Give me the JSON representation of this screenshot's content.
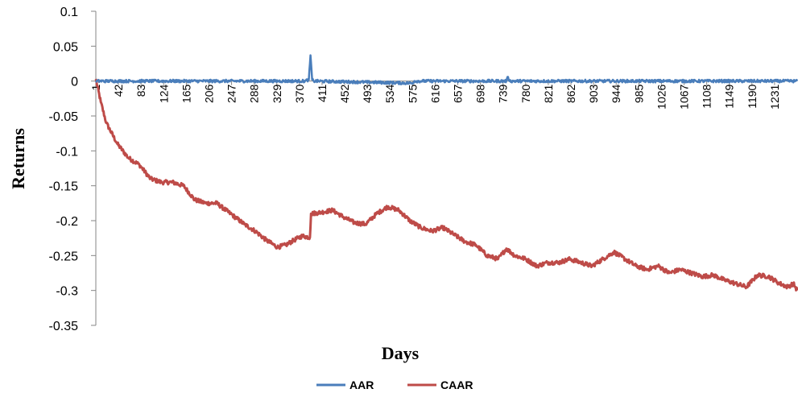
{
  "colors": {
    "aar": "#4a7ebb",
    "caar": "#be4b48",
    "axis": "#868686",
    "tick_text": "#000000"
  },
  "chart_data": {
    "type": "line",
    "title": "",
    "xlabel": "Days",
    "ylabel": "Returns",
    "ylim": [
      -0.35,
      0.1
    ],
    "xlim": [
      1,
      1272
    ],
    "y_ticks": [
      "0.1",
      "0.05",
      "0",
      "-0.05",
      "-0.1",
      "-0.15",
      "-0.2",
      "-0.25",
      "-0.3",
      "-0.35"
    ],
    "y_tick_values": [
      0.1,
      0.05,
      0,
      -0.05,
      -0.1,
      -0.15,
      -0.2,
      -0.25,
      -0.3,
      -0.35
    ],
    "x_ticks": [
      "1",
      "42",
      "83",
      "124",
      "165",
      "206",
      "247",
      "288",
      "329",
      "370",
      "411",
      "452",
      "493",
      "534",
      "575",
      "616",
      "657",
      "698",
      "739",
      "780",
      "821",
      "862",
      "903",
      "944",
      "985",
      "1026",
      "1067",
      "1108",
      "1149",
      "1190",
      "1231"
    ],
    "x_tick_values": [
      1,
      42,
      83,
      124,
      165,
      206,
      247,
      288,
      329,
      370,
      411,
      452,
      493,
      534,
      575,
      616,
      657,
      698,
      739,
      780,
      821,
      862,
      903,
      944,
      985,
      1026,
      1067,
      1108,
      1149,
      1190,
      1231
    ],
    "grid": false,
    "legend_position": "bottom",
    "series": [
      {
        "name": "AAR",
        "noise": 0.002,
        "points": [
          [
            1,
            0
          ],
          [
            380,
            0
          ],
          [
            387,
            0.002
          ],
          [
            390,
            0.037
          ],
          [
            393,
            0.002
          ],
          [
            396,
            0
          ],
          [
            575,
            -0.003
          ],
          [
            578,
            0
          ],
          [
            745,
            0
          ],
          [
            748,
            0.006
          ],
          [
            751,
            0
          ],
          [
            1272,
            0
          ]
        ]
      },
      {
        "name": "CAAR",
        "noise": 0.003,
        "points": [
          [
            1,
            0.003
          ],
          [
            10,
            -0.03
          ],
          [
            20,
            -0.06
          ],
          [
            40,
            -0.09
          ],
          [
            60,
            -0.11
          ],
          [
            80,
            -0.12
          ],
          [
            100,
            -0.14
          ],
          [
            120,
            -0.145
          ],
          [
            140,
            -0.145
          ],
          [
            160,
            -0.15
          ],
          [
            180,
            -0.17
          ],
          [
            200,
            -0.175
          ],
          [
            220,
            -0.175
          ],
          [
            245,
            -0.19
          ],
          [
            270,
            -0.205
          ],
          [
            290,
            -0.215
          ],
          [
            310,
            -0.228
          ],
          [
            330,
            -0.238
          ],
          [
            345,
            -0.235
          ],
          [
            360,
            -0.228
          ],
          [
            375,
            -0.222
          ],
          [
            389,
            -0.224
          ],
          [
            391,
            -0.19
          ],
          [
            410,
            -0.188
          ],
          [
            430,
            -0.185
          ],
          [
            450,
            -0.195
          ],
          [
            470,
            -0.203
          ],
          [
            490,
            -0.205
          ],
          [
            510,
            -0.19
          ],
          [
            530,
            -0.18
          ],
          [
            550,
            -0.185
          ],
          [
            570,
            -0.2
          ],
          [
            590,
            -0.21
          ],
          [
            610,
            -0.215
          ],
          [
            630,
            -0.21
          ],
          [
            650,
            -0.22
          ],
          [
            670,
            -0.23
          ],
          [
            690,
            -0.235
          ],
          [
            710,
            -0.25
          ],
          [
            730,
            -0.255
          ],
          [
            745,
            -0.24
          ],
          [
            760,
            -0.25
          ],
          [
            780,
            -0.255
          ],
          [
            800,
            -0.265
          ],
          [
            820,
            -0.26
          ],
          [
            840,
            -0.26
          ],
          [
            860,
            -0.255
          ],
          [
            880,
            -0.26
          ],
          [
            900,
            -0.265
          ],
          [
            920,
            -0.255
          ],
          [
            940,
            -0.245
          ],
          [
            960,
            -0.255
          ],
          [
            980,
            -0.265
          ],
          [
            1000,
            -0.27
          ],
          [
            1020,
            -0.265
          ],
          [
            1040,
            -0.275
          ],
          [
            1060,
            -0.27
          ],
          [
            1080,
            -0.275
          ],
          [
            1100,
            -0.28
          ],
          [
            1120,
            -0.278
          ],
          [
            1140,
            -0.285
          ],
          [
            1160,
            -0.29
          ],
          [
            1180,
            -0.295
          ],
          [
            1200,
            -0.278
          ],
          [
            1220,
            -0.28
          ],
          [
            1240,
            -0.29
          ],
          [
            1255,
            -0.295
          ],
          [
            1265,
            -0.29
          ],
          [
            1272,
            -0.3
          ]
        ]
      }
    ]
  }
}
